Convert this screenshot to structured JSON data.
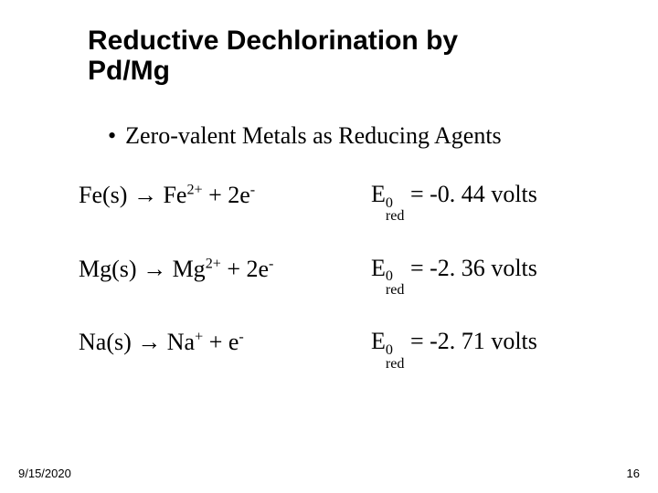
{
  "colors": {
    "background": "#ffffff",
    "text": "#000000"
  },
  "typography": {
    "title_font": "Arial",
    "title_weight": "bold",
    "title_size_pt": 30,
    "body_font": "Times New Roman",
    "body_size_pt": 26,
    "footer_font": "Arial",
    "footer_size_pt": 13
  },
  "title": {
    "line1": "Reductive Dechlorination by",
    "line2": "Pd/Mg"
  },
  "subtitle": {
    "bullet": "•",
    "text": "Zero-valent Metals as Reducing Agents"
  },
  "arrow_glyph": "→",
  "reactions": [
    {
      "reactant": "Fe(s)",
      "product_base": "Fe",
      "product_charge": "2+",
      "electrons_coeff": "2",
      "potential_value": "-0. 44",
      "potential_unit": "volts"
    },
    {
      "reactant": "Mg(s)",
      "product_base": "Mg",
      "product_charge": "2+",
      "electrons_coeff": "2",
      "potential_value": "-2. 36",
      "potential_unit": "volts"
    },
    {
      "reactant": "Na(s)",
      "product_base": "Na",
      "product_charge": "+",
      "electrons_coeff": "",
      "potential_value": "-2. 71",
      "potential_unit": "volts"
    }
  ],
  "e0": {
    "base": "E",
    "sup": "0",
    "sub": "red"
  },
  "electron": {
    "base": "e",
    "sup": "-"
  },
  "footer": {
    "date": "9/15/2020",
    "page": "16"
  }
}
